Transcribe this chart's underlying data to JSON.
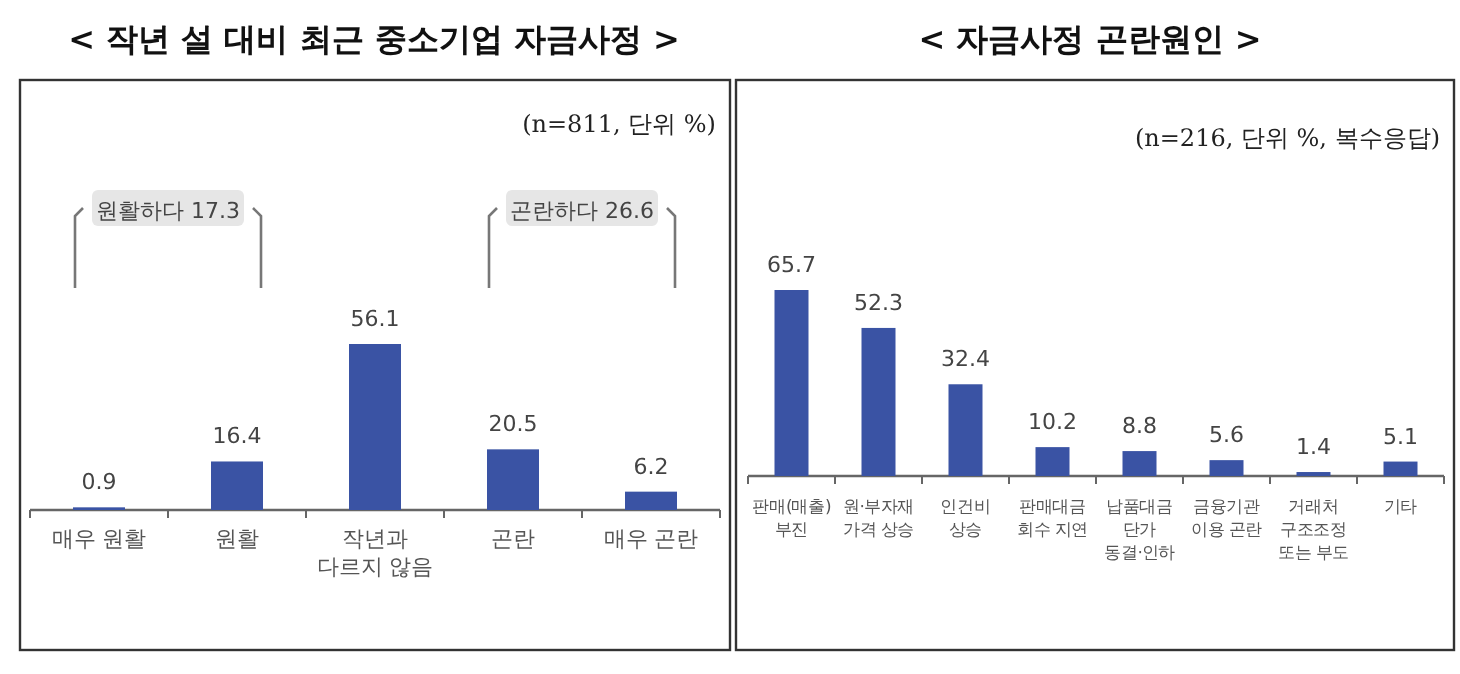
{
  "chart_data": [
    {
      "type": "bar",
      "title": "< 작년 설 대비 최근 중소기업 자금사정 >",
      "subtitle": "(n=811, 단위 %)",
      "categories": [
        "매우 원활",
        "원활",
        "작년과\n다르지 않음",
        "곤란",
        "매우 곤란"
      ],
      "values": [
        0.9,
        16.4,
        56.1,
        20.5,
        6.2
      ],
      "color": "#3a53a4",
      "data_labels": true,
      "annotations": [
        "원활하다 17.3",
        "곤란하다 26.6"
      ]
    },
    {
      "type": "bar",
      "title": "< 자금사정 곤란원인 >",
      "subtitle": "(n=216, 단위 %, 복수응답)",
      "categories": [
        "판매(매출)\n부진",
        "원·부자재\n가격 상승",
        "인건비\n상승",
        "판매대금\n회수 지연",
        "납품대금\n단가\n동결·인하",
        "금융기관\n이용 곤란",
        "거래처\n구조조정\n또는 부도",
        "기타"
      ],
      "values": [
        65.7,
        52.3,
        32.4,
        10.2,
        8.8,
        5.6,
        1.4,
        5.1
      ],
      "color": "#3a53a4",
      "data_labels": true
    }
  ]
}
